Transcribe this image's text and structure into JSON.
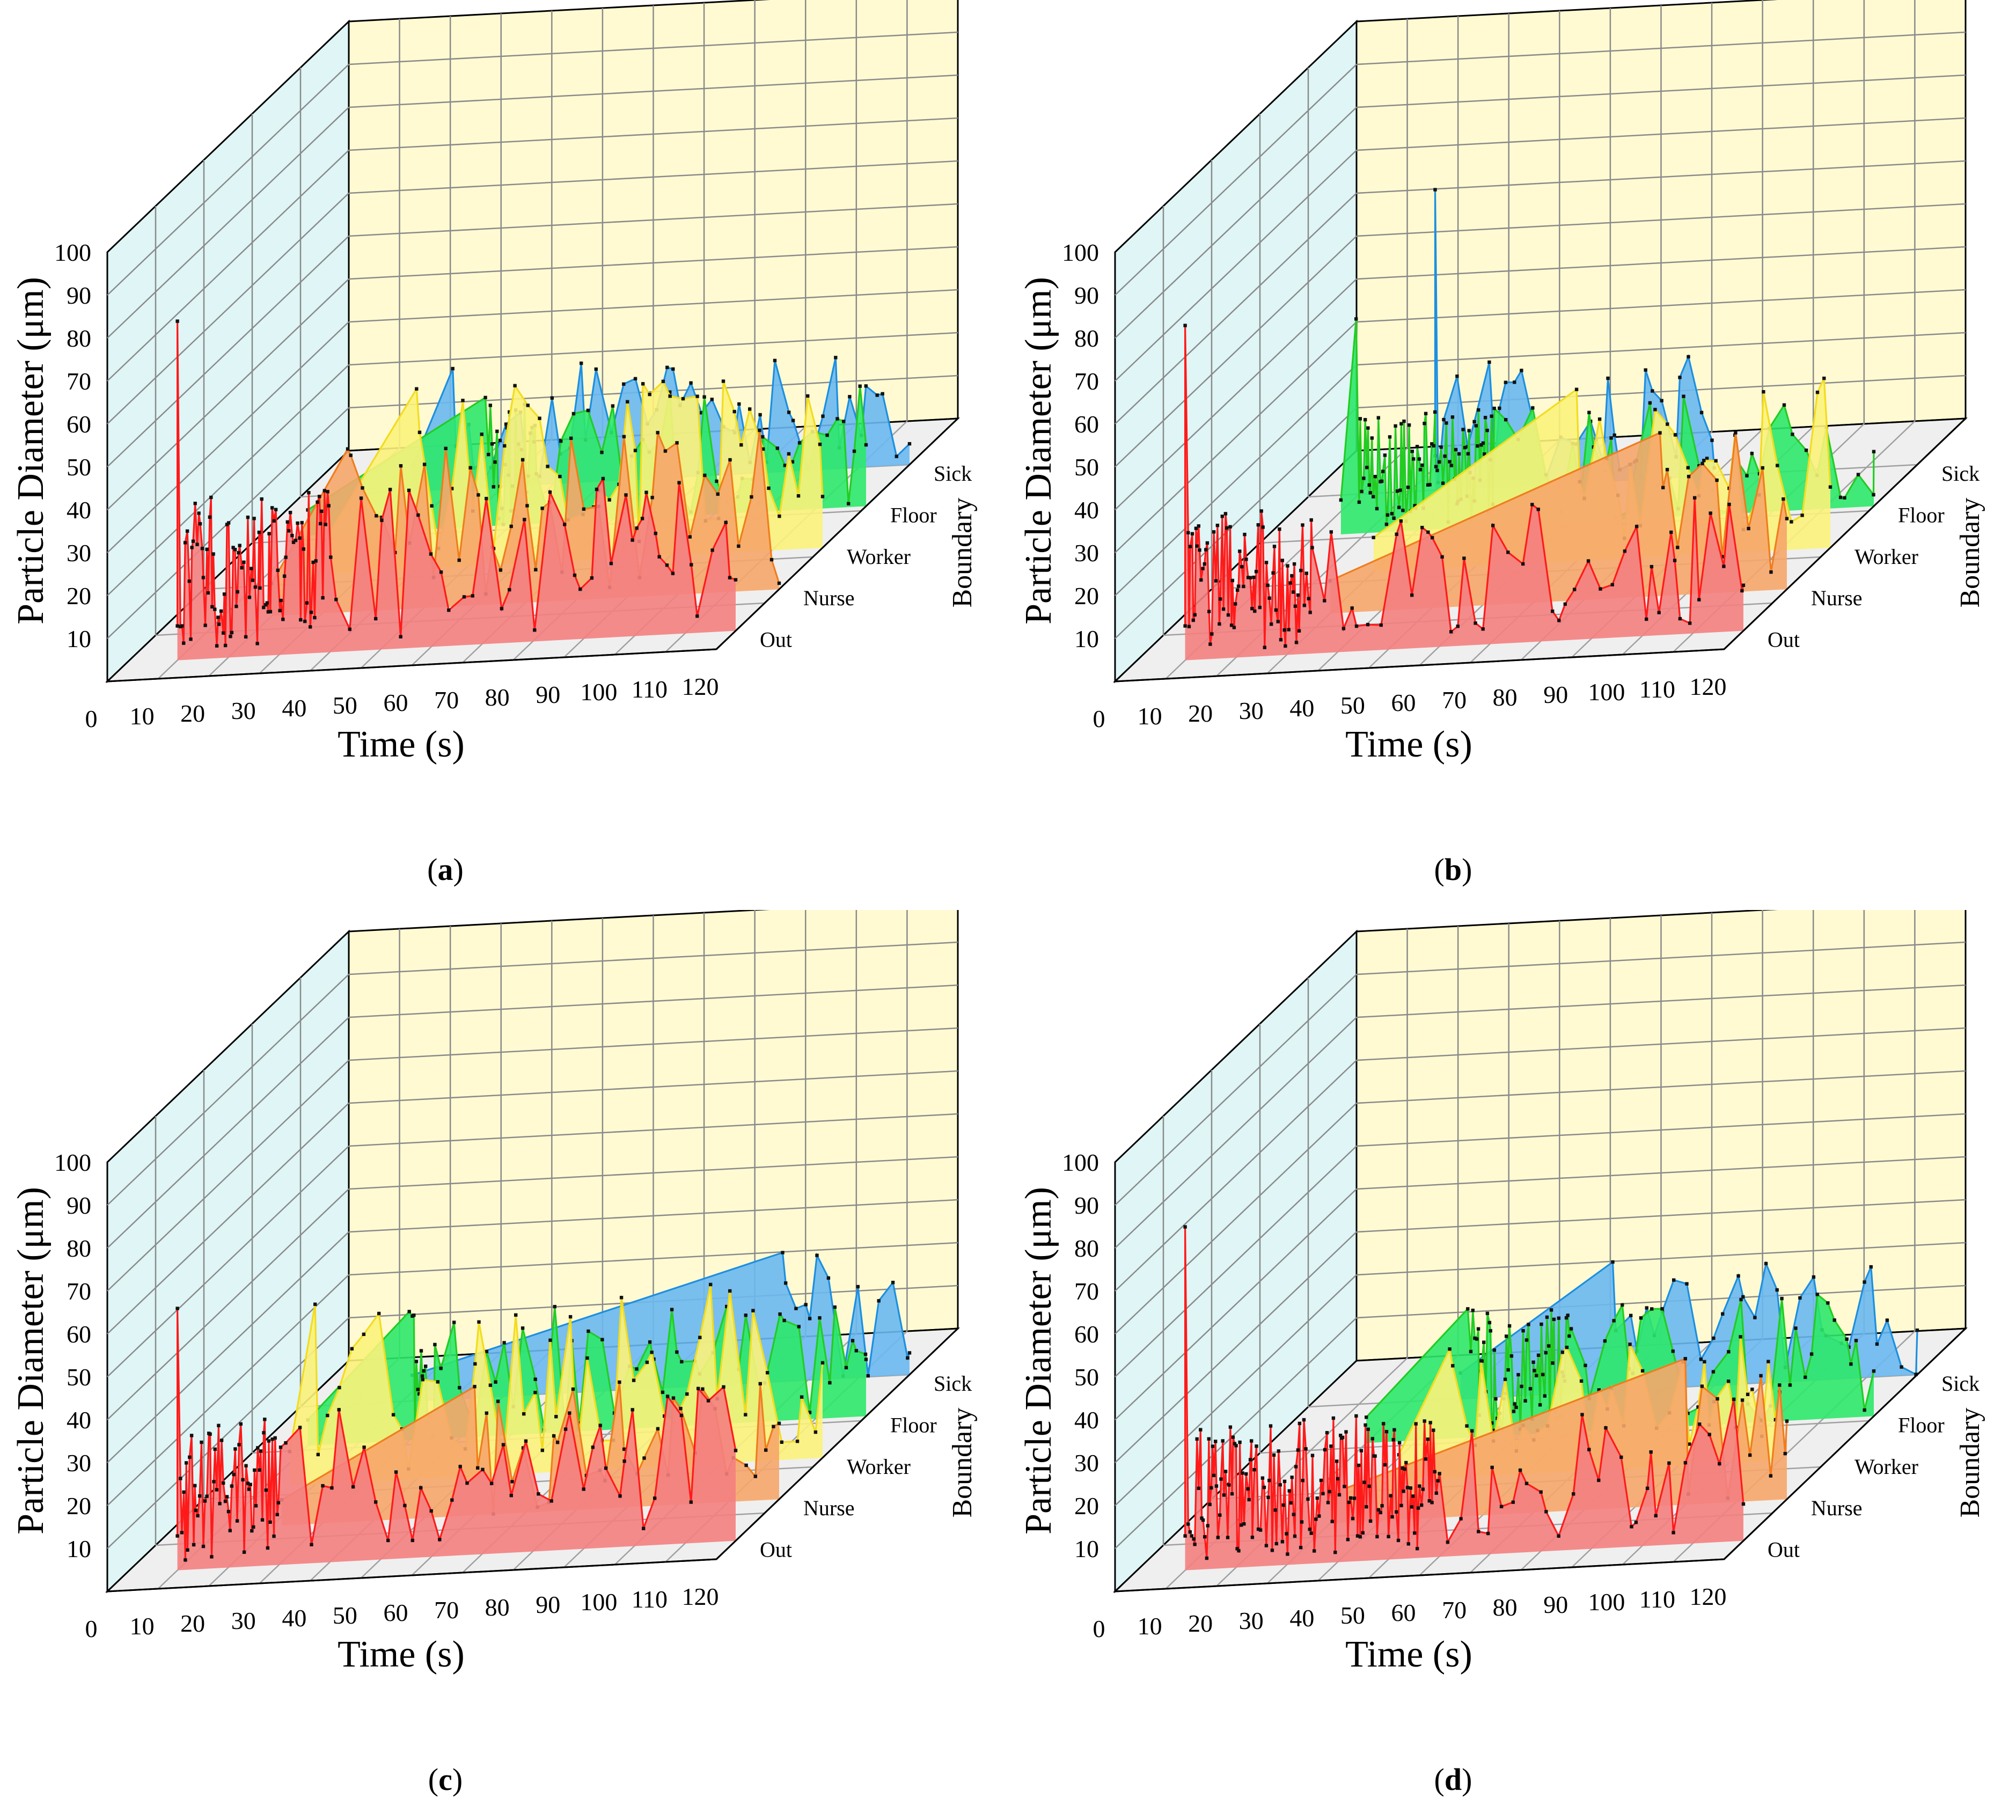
{
  "chart_data": [
    {
      "type": "area",
      "caption": "a",
      "xlabel": "Time (s)",
      "ylabel": "Particle Diameter (μm)",
      "zlabel": "Boundary",
      "xlim": [
        0,
        120
      ],
      "ylim": [
        0,
        100
      ],
      "xticks": [
        "0",
        "10",
        "20",
        "30",
        "40",
        "50",
        "60",
        "70",
        "80",
        "90",
        "100",
        "110",
        "120"
      ],
      "yticks": [
        "10",
        "20",
        "30",
        "40",
        "50",
        "60",
        "70",
        "80",
        "90",
        "100"
      ],
      "boundaries": [
        "Out",
        "Nurse",
        "Worker",
        "Floor",
        "Sick"
      ],
      "series": [
        {
          "name": "Out",
          "color": "#ff1a1a",
          "fill": "#f48080",
          "start": 10,
          "end": 120,
          "peak": [
            10,
            79
          ],
          "dense_to": 40,
          "min": 2,
          "max": 38
        },
        {
          "name": "Nurse",
          "color": "#f07d1e",
          "fill": "#f6a66a",
          "start": 20,
          "end": 120,
          "peak": [
            35,
            38
          ],
          "dense_to": 30,
          "min": 0,
          "max": 38
        },
        {
          "name": "Worker",
          "color": "#f2dc1e",
          "fill": "#fbf27a",
          "start": 22,
          "end": 120,
          "peak": [
            40,
            42
          ],
          "dense_to": 0,
          "min": 0,
          "max": 42
        },
        {
          "name": "Floor",
          "color": "#22cc22",
          "fill": "#2de86a",
          "start": 10,
          "end": 120,
          "peak": [
            45,
            30
          ],
          "dense_to": 55,
          "min": 0,
          "max": 30
        },
        {
          "name": "Sick",
          "color": "#1c8fe0",
          "fill": "#6ab8ef",
          "start": 22,
          "end": 120,
          "peak": [
            30,
            28
          ],
          "dense_to": 0,
          "min": 0,
          "max": 28
        }
      ]
    },
    {
      "type": "area",
      "caption": "b",
      "xlabel": "Time (s)",
      "ylabel": "Particle Diameter (μm)",
      "zlabel": "Boundary",
      "xlim": [
        0,
        120
      ],
      "ylim": [
        0,
        100
      ],
      "xticks": [
        "0",
        "10",
        "20",
        "30",
        "40",
        "50",
        "60",
        "70",
        "80",
        "90",
        "100",
        "110",
        "120"
      ],
      "yticks": [
        "10",
        "20",
        "30",
        "40",
        "50",
        "60",
        "70",
        "80",
        "90",
        "100"
      ],
      "boundaries": [
        "Out",
        "Nurse",
        "Worker",
        "Floor",
        "Sick"
      ],
      "series": [
        {
          "name": "Out",
          "color": "#ff1a1a",
          "fill": "#f48080",
          "start": 10,
          "end": 120,
          "peak": [
            10,
            78
          ],
          "dense_to": 35,
          "min": 2,
          "max": 34
        },
        {
          "name": "Nurse",
          "color": "#f07d1e",
          "fill": "#f6a66a",
          "start": 30,
          "end": 120,
          "peak": [
            95,
            38
          ],
          "dense_to": 0,
          "min": 0,
          "max": 38
        },
        {
          "name": "Worker",
          "color": "#f2dc1e",
          "fill": "#fbf27a",
          "start": 30,
          "end": 120,
          "peak": [
            70,
            40
          ],
          "dense_to": 0,
          "min": 0,
          "max": 40
        },
        {
          "name": "Floor",
          "color": "#22cc22",
          "fill": "#2de86a",
          "start": 15,
          "end": 120,
          "peak": [
            18,
            50
          ],
          "dense_to": 45,
          "min": 0,
          "max": 28
        },
        {
          "name": "Sick",
          "color": "#1c8fe0",
          "fill": "#6ab8ef",
          "start": 25,
          "end": 80,
          "peak": [
            25,
            70
          ],
          "dense_to": 0,
          "min": 0,
          "max": 30
        }
      ]
    },
    {
      "type": "area",
      "caption": "c",
      "xlabel": "Time (s)",
      "ylabel": "Particle Diameter (μm)",
      "zlabel": "Boundary",
      "xlim": [
        0,
        120
      ],
      "ylim": [
        0,
        100
      ],
      "xticks": [
        "0",
        "10",
        "20",
        "30",
        "40",
        "50",
        "60",
        "70",
        "80",
        "90",
        "100",
        "110",
        "120"
      ],
      "yticks": [
        "10",
        "20",
        "30",
        "40",
        "50",
        "60",
        "70",
        "80",
        "90",
        "100"
      ],
      "boundaries": [
        "Out",
        "Nurse",
        "Worker",
        "Floor",
        "Sick"
      ],
      "series": [
        {
          "name": "Out",
          "color": "#ff1a1a",
          "fill": "#f48080",
          "start": 10,
          "end": 120,
          "peak": [
            10,
            61
          ],
          "dense_to": 30,
          "min": 2,
          "max": 36
        },
        {
          "name": "Nurse",
          "color": "#f07d1e",
          "fill": "#f6a66a",
          "start": 22,
          "end": 120,
          "peak": [
            60,
            30
          ],
          "dense_to": 0,
          "min": 0,
          "max": 30
        },
        {
          "name": "Worker",
          "color": "#f2dc1e",
          "fill": "#fbf27a",
          "start": 15,
          "end": 120,
          "peak": [
            20,
            42
          ],
          "dense_to": 0,
          "min": 0,
          "max": 42
        },
        {
          "name": "Floor",
          "color": "#22cc22",
          "fill": "#2de86a",
          "start": 10,
          "end": 120,
          "peak": [
            30,
            30
          ],
          "dense_to": 35,
          "min": 0,
          "max": 30
        },
        {
          "name": "Sick",
          "color": "#1c8fe0",
          "fill": "#6ab8ef",
          "start": 22,
          "end": 120,
          "peak": [
            95,
            30
          ],
          "dense_to": 0,
          "min": 0,
          "max": 30
        }
      ]
    },
    {
      "type": "area",
      "caption": "d",
      "xlabel": "Time (s)",
      "ylabel": "Particle Diameter (μm)",
      "zlabel": "Boundary",
      "xlim": [
        0,
        120
      ],
      "ylim": [
        0,
        100
      ],
      "xticks": [
        "0",
        "10",
        "20",
        "30",
        "40",
        "50",
        "60",
        "70",
        "80",
        "90",
        "100",
        "110",
        "120"
      ],
      "yticks": [
        "10",
        "20",
        "30",
        "40",
        "50",
        "60",
        "70",
        "80",
        "90",
        "100"
      ],
      "boundaries": [
        "Out",
        "Nurse",
        "Worker",
        "Floor",
        "Sick"
      ],
      "series": [
        {
          "name": "Out",
          "color": "#ff1a1a",
          "fill": "#f48080",
          "start": 10,
          "end": 120,
          "peak": [
            10,
            80
          ],
          "dense_to": 60,
          "min": 2,
          "max": 34
        },
        {
          "name": "Nurse",
          "color": "#f07d1e",
          "fill": "#f6a66a",
          "start": 30,
          "end": 120,
          "peak": [
            100,
            34
          ],
          "dense_to": 0,
          "min": 0,
          "max": 34
        },
        {
          "name": "Worker",
          "color": "#f2dc1e",
          "fill": "#fbf27a",
          "start": 35,
          "end": 110,
          "peak": [
            45,
            30
          ],
          "dense_to": 0,
          "min": 0,
          "max": 30
        },
        {
          "name": "Floor",
          "color": "#22cc22",
          "fill": "#2de86a",
          "start": 20,
          "end": 120,
          "peak": [
            40,
            30
          ],
          "dense_to": 60,
          "min": 0,
          "max": 30
        },
        {
          "name": "Sick",
          "color": "#1c8fe0",
          "fill": "#6ab8ef",
          "start": 30,
          "end": 120,
          "peak": [
            60,
            30
          ],
          "dense_to": 45,
          "min": 0,
          "max": 30
        }
      ]
    }
  ]
}
